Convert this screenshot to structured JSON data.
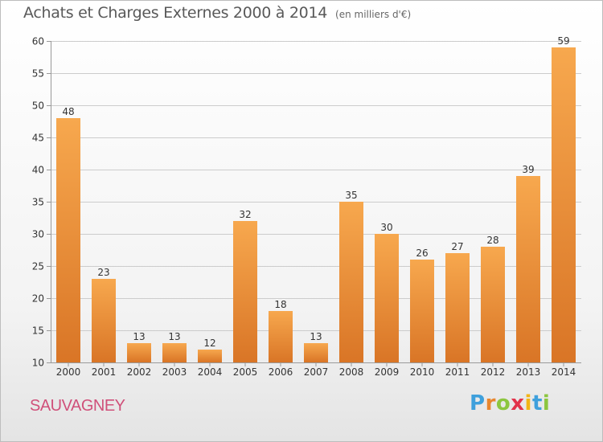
{
  "header": {
    "title": "Achats et Charges Externes 2000 à 2014",
    "unit": "(en milliers d'€)"
  },
  "footer": {
    "city": "SAUVAGNEY",
    "logo_letters": [
      "P",
      "r",
      "o",
      "x",
      "i",
      "t",
      "i"
    ],
    "logo_colors": [
      "#3ea0dc",
      "#e8862e",
      "#8cc63f",
      "#e2334b",
      "#f2b515",
      "#3ea0dc",
      "#8cc63f"
    ]
  },
  "colors": {
    "bar_light": "#f7a84e",
    "bar_dark": "#d97526",
    "grid": "#cccccc",
    "axis": "#999999"
  },
  "chart_data": {
    "type": "bar",
    "title": "Achats et Charges Externes 2000 à 2014",
    "subtitle": "(en milliers d'€)",
    "categories": [
      "2000",
      "2001",
      "2002",
      "2003",
      "2004",
      "2005",
      "2006",
      "2007",
      "2008",
      "2009",
      "2010",
      "2011",
      "2012",
      "2013",
      "2014"
    ],
    "values": [
      48,
      23,
      13,
      13,
      12,
      32,
      18,
      13,
      35,
      30,
      26,
      27,
      28,
      39,
      59
    ],
    "ylim": [
      10,
      60
    ],
    "yticks": [
      10,
      15,
      20,
      25,
      30,
      35,
      40,
      45,
      50,
      55,
      60
    ],
    "grid": true
  }
}
